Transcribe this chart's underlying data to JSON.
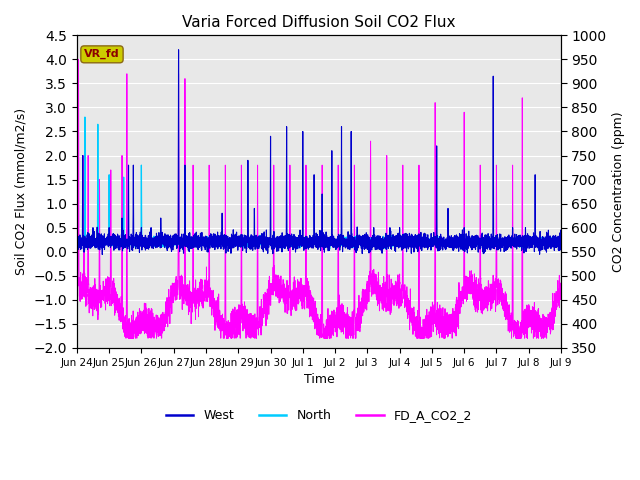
{
  "title": "Varia Forced Diffusion Soil CO2 Flux",
  "xlabel": "Time",
  "ylabel_left": "Soil CO2 Flux (mmol/m2/s)",
  "ylabel_right": "CO2 Concentration (ppm)",
  "ylim_left": [
    -2.0,
    4.5
  ],
  "ylim_right": [
    350,
    1000
  ],
  "xtick_labels": [
    "Jun 24",
    "Jun 25",
    "Jun 26",
    "Jun 27",
    "Jun 28",
    "Jun 29",
    "Jun 30",
    "Jul 1",
    "Jul 2",
    "Jul 3",
    "Jul 4",
    "Jul 5",
    "Jul 6",
    "Jul 7",
    "Jul 8",
    "Jul 9"
  ],
  "colors": {
    "west": "#0000CD",
    "north": "#00CCFF",
    "fd_co2": "#FF00FF"
  },
  "watermark_text": "VR_fd",
  "watermark_bg": "#CCCC00",
  "watermark_fg": "#8B0000",
  "plot_bg": "#E8E8E8",
  "grid_color": "white",
  "n_points": 5000,
  "co2_baseline": 430,
  "co2_noise_amp": 40,
  "co2_spike_heights": [
    950,
    750,
    750,
    700,
    720,
    750,
    920,
    920,
    730,
    730,
    730,
    730,
    730,
    730,
    730,
    730,
    730,
    910,
    730,
    730,
    780,
    750,
    730,
    730,
    860,
    840,
    730,
    730,
    730,
    870
  ],
  "co2_spike_times": [
    0.05,
    0.22,
    0.35,
    0.7,
    1.05,
    1.4,
    1.55,
    3.15,
    3.6,
    4.1,
    4.6,
    5.1,
    5.6,
    6.1,
    6.6,
    7.1,
    7.6,
    3.35,
    8.1,
    8.6,
    9.1,
    9.6,
    10.1,
    10.6,
    11.1,
    12.0,
    12.5,
    13.0,
    13.5,
    13.8
  ],
  "west_spike_times": [
    0.18,
    0.5,
    1.0,
    1.4,
    1.6,
    1.75,
    2.0,
    2.3,
    2.6,
    3.15,
    3.35,
    4.5,
    5.3,
    5.5,
    6.0,
    6.5,
    7.0,
    7.35,
    7.6,
    7.9,
    8.2,
    8.5,
    9.2,
    9.7,
    10.0,
    10.6,
    11.15,
    11.5,
    12.0,
    12.9,
    13.5,
    13.9,
    14.2
  ],
  "west_spike_heights": [
    2.0,
    0.5,
    0.5,
    0.7,
    1.8,
    1.8,
    0.5,
    0.5,
    0.7,
    4.2,
    1.8,
    0.8,
    1.9,
    0.9,
    2.4,
    2.6,
    2.5,
    1.6,
    1.2,
    2.1,
    2.6,
    2.5,
    0.5,
    0.5,
    0.5,
    0.3,
    2.2,
    0.9,
    0.5,
    3.65,
    0.5,
    0.5,
    1.6
  ],
  "north_spike_times": [
    0.25,
    0.65,
    1.0,
    1.45,
    2.0
  ],
  "north_spike_heights": [
    2.8,
    2.65,
    1.6,
    1.55,
    1.8
  ]
}
